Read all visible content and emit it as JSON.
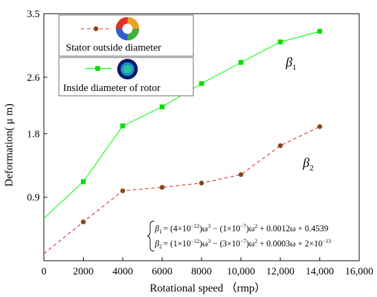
{
  "chart_data": {
    "type": "line",
    "xlabel": "Rotational speed （rmp）",
    "ylabel": "Deformation( μ m)",
    "xlim": [
      0,
      16000
    ],
    "ylim": [
      0,
      3.5
    ],
    "x_ticks": [
      "0",
      "2000",
      "4000",
      "6000",
      "8000",
      "10,000",
      "12,000",
      "14,000",
      "16,000"
    ],
    "y_ticks": [
      "0.9",
      "1.8",
      "2.6",
      "3.5"
    ],
    "y_tick_values": [
      0.9,
      1.8,
      2.6,
      3.5
    ],
    "grid": false,
    "legend_position": "top-left",
    "series": [
      {
        "name": "Stator outside diameter",
        "curve_label": "β",
        "curve_label_sub": "2",
        "color": "#d62728",
        "marker_color": "#8b4513",
        "line_style": "dashed",
        "marker": "circle",
        "x": [
          0,
          2000,
          4000,
          6000,
          8000,
          10000,
          12000,
          14000
        ],
        "values": [
          0.1,
          0.55,
          0.99,
          1.04,
          1.1,
          1.22,
          1.63,
          1.9
        ]
      },
      {
        "name": "Inside diameter of rotor",
        "curve_label": "β",
        "curve_label_sub": "1",
        "color": "#00ff00",
        "marker_color": "#00dd00",
        "line_style": "solid",
        "marker": "square",
        "x": [
          0,
          2000,
          4000,
          6000,
          8000,
          10000,
          12000,
          14000
        ],
        "values": [
          0.6,
          1.12,
          1.91,
          2.18,
          2.51,
          2.81,
          3.1,
          3.25
        ]
      }
    ],
    "equations": {
      "line1": {
        "lhs": "β",
        "lhs_sub": "1",
        "parts": [
          "= (4×10",
          "−12",
          ")ω",
          "3",
          " − (1×10",
          "−7",
          ")ω",
          "2",
          " + 0.0012ω + 0.4539"
        ]
      },
      "line2": {
        "lhs": "β",
        "lhs_sub": "2",
        "parts": [
          "= (1×10",
          "−12",
          ")ω",
          "3",
          " − (3×10",
          "−7",
          ")ω",
          "2",
          " + 0.0003ω + 2×10",
          "−13",
          ""
        ]
      }
    }
  }
}
